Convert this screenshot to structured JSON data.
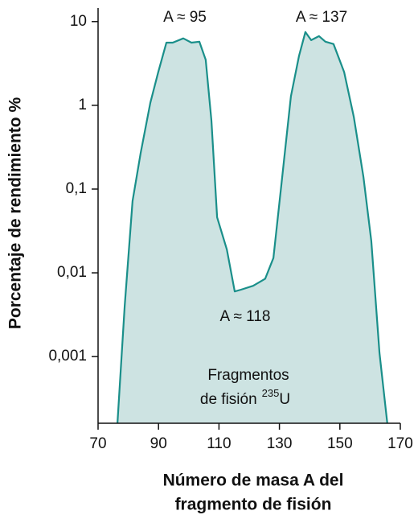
{
  "chart_data": {
    "type": "area",
    "ylabel": "Porcentaje de rendimiento %",
    "xlabel": [
      "Número de masa A del",
      "fragmento de fisión"
    ],
    "x": [
      76.4,
      78.8,
      81.4,
      84.1,
      87.3,
      89.9,
      92.6,
      94.7,
      98.2,
      100.9,
      103.5,
      105.6,
      107.5,
      109.4,
      112.6,
      115.2,
      117.3,
      121.3,
      125.3,
      128,
      130.6,
      133.8,
      136.5,
      138.6,
      140.5,
      143.1,
      145.2,
      147.9,
      151.4,
      154.6,
      157.8,
      160.4,
      163.1,
      165.7
    ],
    "values": [
      0.00016,
      0.004,
      0.072,
      0.27,
      1.07,
      2.48,
      5.6,
      5.6,
      6.3,
      5.6,
      5.75,
      3.5,
      0.66,
      0.046,
      0.019,
      0.006,
      0.0063,
      0.007,
      0.0085,
      0.015,
      0.11,
      1.28,
      3.9,
      7.5,
      6.0,
      6.7,
      5.75,
      5.4,
      2.5,
      0.73,
      0.14,
      0.024,
      0.0011,
      0.00016
    ],
    "color": "#1a8f8a",
    "fill": "#cde3e2",
    "log_y": true,
    "xlim": [
      70,
      170
    ],
    "xticks": [
      70,
      90,
      110,
      130,
      150,
      170
    ],
    "ylim": [
      0.00016,
      14.5
    ],
    "yticks": [
      {
        "value": 0.001,
        "label": "0,001"
      },
      {
        "value": 0.01,
        "label": "0,01"
      },
      {
        "value": 0.1,
        "label": "0,1"
      },
      1,
      10
    ],
    "annotations": [
      "A ≈ 95",
      "A ≈ 137",
      "A ≈ 118"
    ],
    "fragment_label": {
      "line1": "Fragmentos",
      "line2": "de fisión",
      "mass_number": "235",
      "element": "U"
    }
  }
}
